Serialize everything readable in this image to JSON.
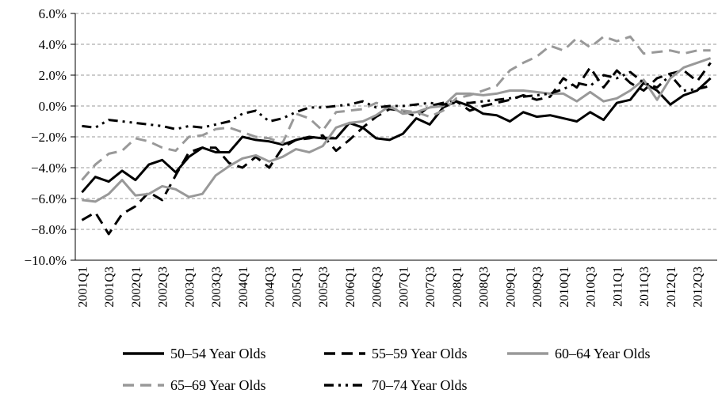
{
  "chart_data": {
    "type": "line",
    "categories": [
      "2001Q1",
      null,
      "2001Q3",
      null,
      "2002Q1",
      null,
      "2002Q3",
      null,
      "2003Q1",
      null,
      "2003Q3",
      null,
      "2004Q1",
      null,
      "2004Q3",
      null,
      "2005Q1",
      null,
      "2005Q3",
      null,
      "2006Q1",
      null,
      "2006Q3",
      null,
      "2007Q1",
      null,
      "2007Q3",
      null,
      "2008Q1",
      null,
      "2008Q3",
      null,
      "2009Q1",
      null,
      "2009Q3",
      null,
      "2010Q1",
      null,
      "2010Q3",
      null,
      "2011Q1",
      null,
      "2011Q3",
      null,
      "2012Q1",
      null,
      "2012Q3",
      null
    ],
    "series": [
      {
        "name": "50–54 Year Olds",
        "color": "#000000",
        "dash": "solid",
        "values": [
          -5.6,
          -4.6,
          -4.9,
          -4.2,
          -4.8,
          -3.8,
          -3.5,
          -4.3,
          -3.3,
          -2.7,
          -3.0,
          -3.0,
          -2.0,
          -2.2,
          -2.3,
          -2.5,
          -2.2,
          -2.0,
          -2.1,
          -2.1,
          -1.1,
          -1.4,
          -2.1,
          -2.2,
          -1.8,
          -0.8,
          -1.2,
          -0.1,
          0.3,
          0.0,
          -0.5,
          -0.6,
          -1.0,
          -0.4,
          -0.7,
          -0.6,
          -0.8,
          -1.0,
          -0.4,
          -0.9,
          0.2,
          0.4,
          1.5,
          1.0,
          0.1,
          0.7,
          1.0,
          1.8
        ]
      },
      {
        "name": "55–59 Year Olds",
        "color": "#000000",
        "dash": "dashed",
        "values": [
          -7.4,
          -6.9,
          -8.3,
          -7.0,
          -6.5,
          -5.6,
          -6.1,
          -4.5,
          -3.0,
          -2.7,
          -2.7,
          -3.7,
          -4.0,
          -3.3,
          -4.0,
          -2.7,
          -2.2,
          -2.1,
          -1.9,
          -2.9,
          -2.2,
          -1.4,
          -0.7,
          -0.2,
          -0.3,
          -0.7,
          0.0,
          0.2,
          0.3,
          -0.3,
          0.0,
          0.2,
          0.4,
          0.7,
          0.4,
          0.6,
          1.8,
          1.2,
          2.5,
          1.2,
          2.3,
          1.5,
          1.0,
          1.8,
          2.1,
          2.3,
          1.6,
          2.8
        ]
      },
      {
        "name": "60–64 Year Olds",
        "color": "#999999",
        "dash": "solid",
        "values": [
          -6.1,
          -6.2,
          -5.7,
          -4.8,
          -5.8,
          -5.7,
          -5.2,
          -5.4,
          -5.9,
          -5.7,
          -4.5,
          -3.9,
          -3.4,
          -3.2,
          -3.6,
          -3.3,
          -2.8,
          -3.0,
          -2.6,
          -1.4,
          -1.1,
          -1.0,
          -0.6,
          0.0,
          -0.5,
          -0.4,
          -0.1,
          0.0,
          0.8,
          0.8,
          0.7,
          0.8,
          1.0,
          1.0,
          0.9,
          0.8,
          0.8,
          0.3,
          0.9,
          0.3,
          0.5,
          1.0,
          1.7,
          0.4,
          1.8,
          2.5,
          2.8,
          3.1
        ]
      },
      {
        "name": "65–69 Year Olds",
        "color": "#999999",
        "dash": "dashed",
        "values": [
          -4.8,
          -3.8,
          -3.1,
          -2.9,
          -2.1,
          -2.3,
          -2.7,
          -2.9,
          -2.0,
          -1.9,
          -1.5,
          -1.4,
          -1.7,
          -2.0,
          -2.1,
          -2.4,
          -0.5,
          -0.8,
          -1.6,
          -0.4,
          -0.3,
          -0.2,
          0.2,
          -0.1,
          -0.3,
          -0.4,
          -0.7,
          -0.3,
          0.5,
          0.7,
          1.0,
          1.3,
          2.3,
          2.8,
          3.2,
          3.9,
          3.6,
          4.4,
          3.8,
          4.5,
          4.2,
          4.5,
          3.4,
          3.5,
          3.6,
          3.4,
          3.6,
          3.6
        ]
      },
      {
        "name": "70–74 Year Olds",
        "color": "#000000",
        "dash": "dashdot",
        "values": [
          -1.3,
          -1.4,
          -0.9,
          -1.0,
          -1.1,
          -1.2,
          -1.3,
          -1.5,
          -1.3,
          -1.4,
          -1.2,
          -1.0,
          -0.5,
          -0.3,
          -1.0,
          -0.8,
          -0.4,
          -0.1,
          -0.1,
          0.0,
          0.1,
          0.3,
          -0.1,
          0.0,
          0.0,
          0.1,
          0.2,
          0.1,
          0.2,
          0.2,
          0.3,
          0.4,
          0.5,
          0.6,
          0.7,
          0.8,
          1.1,
          1.5,
          1.3,
          2.0,
          1.8,
          2.2,
          1.5,
          1.2,
          2.0,
          1.0,
          1.1,
          1.3
        ]
      }
    ],
    "ylim": [
      -10,
      6
    ],
    "yticks": [
      {
        "value": -10,
        "label": "−10.0%"
      },
      {
        "value": -8,
        "label": "−8.0%"
      },
      {
        "value": -6,
        "label": "−6.0%"
      },
      {
        "value": -4,
        "label": "−4.0%"
      },
      {
        "value": -2,
        "label": "−2.0%"
      },
      {
        "value": 0,
        "label": "0.0%"
      },
      {
        "value": 2,
        "label": "2.0%"
      },
      {
        "value": 4,
        "label": "4.0%"
      },
      {
        "value": 6,
        "label": "6.0%"
      }
    ],
    "grid": true,
    "legend": "bottom"
  }
}
